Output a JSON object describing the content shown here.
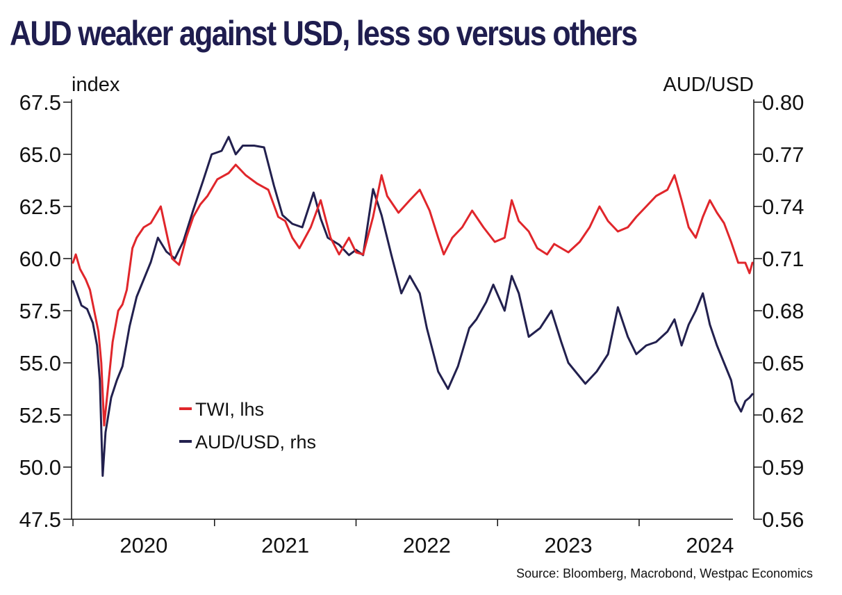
{
  "title": "AUD weaker against USD, less so versus others",
  "source": "Source: Bloomberg, Macrobond, Westpac Economics",
  "colors": {
    "title": "#1f1d4f",
    "twi": "#e0262b",
    "audusd": "#22204e",
    "axis": "#111111"
  },
  "chart_data": {
    "type": "line",
    "left_axis": {
      "unit_label": "index",
      "range": [
        47.5,
        67.5
      ],
      "ticks": [
        "67.5",
        "65.0",
        "62.5",
        "60.0",
        "57.5",
        "55.0",
        "52.5",
        "50.0",
        "47.5"
      ]
    },
    "right_axis": {
      "unit_label": "AUD/USD",
      "range": [
        0.56,
        0.8
      ],
      "ticks": [
        "0.80",
        "0.77",
        "0.74",
        "0.71",
        "0.68",
        "0.65",
        "0.62",
        "0.59",
        "0.56"
      ]
    },
    "x_axis": {
      "range": [
        2019.99,
        2024.81
      ],
      "year_labels": [
        "2020",
        "2021",
        "2022",
        "2023",
        "2024"
      ]
    },
    "legend": [
      {
        "key": "twi",
        "label": "TWI, lhs"
      },
      {
        "key": "audusd",
        "label": "AUD/USD, rhs"
      }
    ],
    "series": [
      {
        "name": "TWI, lhs",
        "axis": "left",
        "points": [
          [
            2020.0,
            59.8
          ],
          [
            2020.02,
            60.2
          ],
          [
            2020.05,
            59.5
          ],
          [
            2020.09,
            59.0
          ],
          [
            2020.12,
            58.5
          ],
          [
            2020.15,
            57.5
          ],
          [
            2020.18,
            56.5
          ],
          [
            2020.2,
            55.0
          ],
          [
            2020.22,
            52.0
          ],
          [
            2020.25,
            54.0
          ],
          [
            2020.28,
            56.0
          ],
          [
            2020.32,
            57.5
          ],
          [
            2020.35,
            57.8
          ],
          [
            2020.38,
            58.5
          ],
          [
            2020.42,
            60.5
          ],
          [
            2020.45,
            61.0
          ],
          [
            2020.5,
            61.5
          ],
          [
            2020.55,
            61.7
          ],
          [
            2020.62,
            62.5
          ],
          [
            2020.7,
            60.0
          ],
          [
            2020.75,
            59.7
          ],
          [
            2020.8,
            61.0
          ],
          [
            2020.85,
            62.0
          ],
          [
            2020.9,
            62.6
          ],
          [
            2020.95,
            63.0
          ],
          [
            2021.02,
            63.8
          ],
          [
            2021.1,
            64.1
          ],
          [
            2021.15,
            64.5
          ],
          [
            2021.22,
            64.0
          ],
          [
            2021.3,
            63.6
          ],
          [
            2021.38,
            63.3
          ],
          [
            2021.45,
            62.0
          ],
          [
            2021.5,
            61.8
          ],
          [
            2021.55,
            61.0
          ],
          [
            2021.6,
            60.5
          ],
          [
            2021.68,
            61.5
          ],
          [
            2021.75,
            62.8
          ],
          [
            2021.82,
            61.0
          ],
          [
            2021.88,
            60.2
          ],
          [
            2021.95,
            61.0
          ],
          [
            2022.0,
            60.3
          ],
          [
            2022.05,
            60.2
          ],
          [
            2022.12,
            62.0
          ],
          [
            2022.18,
            64.0
          ],
          [
            2022.22,
            63.0
          ],
          [
            2022.3,
            62.2
          ],
          [
            2022.38,
            62.8
          ],
          [
            2022.45,
            63.3
          ],
          [
            2022.52,
            62.3
          ],
          [
            2022.58,
            61.0
          ],
          [
            2022.62,
            60.2
          ],
          [
            2022.68,
            61.0
          ],
          [
            2022.75,
            61.5
          ],
          [
            2022.82,
            62.3
          ],
          [
            2022.9,
            61.5
          ],
          [
            2022.98,
            60.8
          ],
          [
            2023.05,
            61.0
          ],
          [
            2023.1,
            62.8
          ],
          [
            2023.15,
            61.8
          ],
          [
            2023.22,
            61.3
          ],
          [
            2023.28,
            60.5
          ],
          [
            2023.35,
            60.2
          ],
          [
            2023.4,
            60.7
          ],
          [
            2023.5,
            60.3
          ],
          [
            2023.58,
            60.8
          ],
          [
            2023.65,
            61.5
          ],
          [
            2023.72,
            62.5
          ],
          [
            2023.78,
            61.8
          ],
          [
            2023.85,
            61.3
          ],
          [
            2023.92,
            61.5
          ],
          [
            2023.98,
            62.0
          ],
          [
            2024.05,
            62.5
          ],
          [
            2024.12,
            63.0
          ],
          [
            2024.2,
            63.3
          ],
          [
            2024.25,
            64.0
          ],
          [
            2024.3,
            62.8
          ],
          [
            2024.35,
            61.5
          ],
          [
            2024.4,
            61.0
          ],
          [
            2024.45,
            62.0
          ],
          [
            2024.5,
            62.8
          ],
          [
            2024.55,
            62.2
          ],
          [
            2024.6,
            61.7
          ],
          [
            2024.65,
            60.8
          ],
          [
            2024.7,
            59.8
          ],
          [
            2024.75,
            59.8
          ],
          [
            2024.78,
            59.3
          ],
          [
            2024.8,
            59.8
          ]
        ]
      },
      {
        "name": "AUD/USD, rhs",
        "axis": "right",
        "points": [
          [
            2020.0,
            0.697
          ],
          [
            2020.03,
            0.69
          ],
          [
            2020.06,
            0.683
          ],
          [
            2020.1,
            0.681
          ],
          [
            2020.14,
            0.673
          ],
          [
            2020.17,
            0.66
          ],
          [
            2020.19,
            0.64
          ],
          [
            2020.21,
            0.585
          ],
          [
            2020.23,
            0.61
          ],
          [
            2020.27,
            0.63
          ],
          [
            2020.31,
            0.64
          ],
          [
            2020.35,
            0.648
          ],
          [
            2020.4,
            0.671
          ],
          [
            2020.45,
            0.688
          ],
          [
            2020.5,
            0.698
          ],
          [
            2020.55,
            0.708
          ],
          [
            2020.6,
            0.722
          ],
          [
            2020.66,
            0.714
          ],
          [
            2020.72,
            0.71
          ],
          [
            2020.78,
            0.72
          ],
          [
            2020.85,
            0.738
          ],
          [
            2020.92,
            0.755
          ],
          [
            2020.98,
            0.77
          ],
          [
            2021.05,
            0.772
          ],
          [
            2021.1,
            0.78
          ],
          [
            2021.15,
            0.77
          ],
          [
            2021.2,
            0.775
          ],
          [
            2021.28,
            0.775
          ],
          [
            2021.35,
            0.774
          ],
          [
            2021.42,
            0.752
          ],
          [
            2021.48,
            0.735
          ],
          [
            2021.55,
            0.73
          ],
          [
            2021.62,
            0.728
          ],
          [
            2021.7,
            0.748
          ],
          [
            2021.75,
            0.733
          ],
          [
            2021.8,
            0.722
          ],
          [
            2021.88,
            0.718
          ],
          [
            2021.95,
            0.712
          ],
          [
            2022.0,
            0.715
          ],
          [
            2022.05,
            0.712
          ],
          [
            2022.12,
            0.75
          ],
          [
            2022.18,
            0.735
          ],
          [
            2022.25,
            0.712
          ],
          [
            2022.32,
            0.69
          ],
          [
            2022.38,
            0.7
          ],
          [
            2022.45,
            0.69
          ],
          [
            2022.5,
            0.67
          ],
          [
            2022.58,
            0.645
          ],
          [
            2022.65,
            0.635
          ],
          [
            2022.72,
            0.648
          ],
          [
            2022.8,
            0.67
          ],
          [
            2022.85,
            0.675
          ],
          [
            2022.92,
            0.685
          ],
          [
            2022.97,
            0.695
          ],
          [
            2023.05,
            0.68
          ],
          [
            2023.1,
            0.7
          ],
          [
            2023.15,
            0.69
          ],
          [
            2023.22,
            0.665
          ],
          [
            2023.3,
            0.67
          ],
          [
            2023.38,
            0.68
          ],
          [
            2023.45,
            0.662
          ],
          [
            2023.5,
            0.65
          ],
          [
            2023.55,
            0.645
          ],
          [
            2023.62,
            0.638
          ],
          [
            2023.7,
            0.645
          ],
          [
            2023.78,
            0.655
          ],
          [
            2023.85,
            0.682
          ],
          [
            2023.92,
            0.665
          ],
          [
            2023.98,
            0.655
          ],
          [
            2024.05,
            0.66
          ],
          [
            2024.12,
            0.662
          ],
          [
            2024.2,
            0.668
          ],
          [
            2024.25,
            0.675
          ],
          [
            2024.3,
            0.66
          ],
          [
            2024.35,
            0.672
          ],
          [
            2024.4,
            0.68
          ],
          [
            2024.45,
            0.69
          ],
          [
            2024.5,
            0.672
          ],
          [
            2024.55,
            0.66
          ],
          [
            2024.6,
            0.65
          ],
          [
            2024.65,
            0.64
          ],
          [
            2024.68,
            0.628
          ],
          [
            2024.72,
            0.622
          ],
          [
            2024.75,
            0.628
          ],
          [
            2024.78,
            0.63
          ],
          [
            2024.8,
            0.632
          ]
        ]
      }
    ]
  }
}
